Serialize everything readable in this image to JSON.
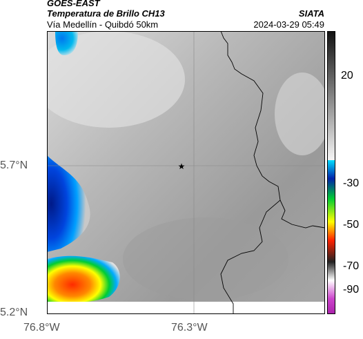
{
  "header": {
    "satellite": "GOES-EAST",
    "product": "Temperatura de Brillo CH13",
    "region": "Vía Medellín - Quibdó 50km",
    "agency": "SIATA",
    "datetime": "2024-03-29 05:49"
  },
  "map": {
    "lat_ticks": [
      "5.7°N",
      "5.2°N"
    ],
    "lon_ticks": [
      "76.8°W",
      "76.3°W"
    ],
    "marker_icon": "star-icon",
    "gridlines": true
  },
  "colorbar": {
    "ticks": [
      "20",
      "-30",
      "-50",
      "-70",
      "-90"
    ]
  },
  "colors": {
    "cloud_gray": "#8c8c8c",
    "border_line": "#000000",
    "cold_blue": "#0033cc",
    "warm_red": "#ff2200"
  }
}
